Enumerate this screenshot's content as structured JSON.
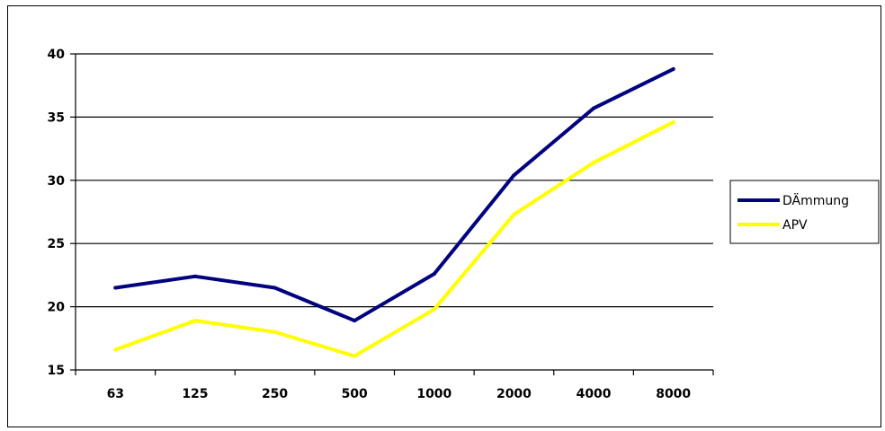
{
  "chart_data": {
    "type": "line",
    "title": "",
    "xlabel": "",
    "ylabel": "",
    "categories": [
      "63",
      "125",
      "250",
      "500",
      "1000",
      "2000",
      "4000",
      "8000"
    ],
    "ylim": [
      15,
      40
    ],
    "yticks": [
      15,
      20,
      25,
      30,
      35,
      40
    ],
    "grid": "horizontal",
    "legend_position": "right",
    "series": [
      {
        "name": "DÄmmung",
        "color": "#000080",
        "values": [
          21.5,
          22.4,
          21.5,
          18.9,
          22.6,
          30.4,
          35.7,
          38.8
        ]
      },
      {
        "name": "APV",
        "color": "#ffff00",
        "values": [
          16.6,
          18.9,
          18.0,
          16.1,
          19.8,
          27.3,
          31.4,
          34.6
        ]
      }
    ]
  }
}
